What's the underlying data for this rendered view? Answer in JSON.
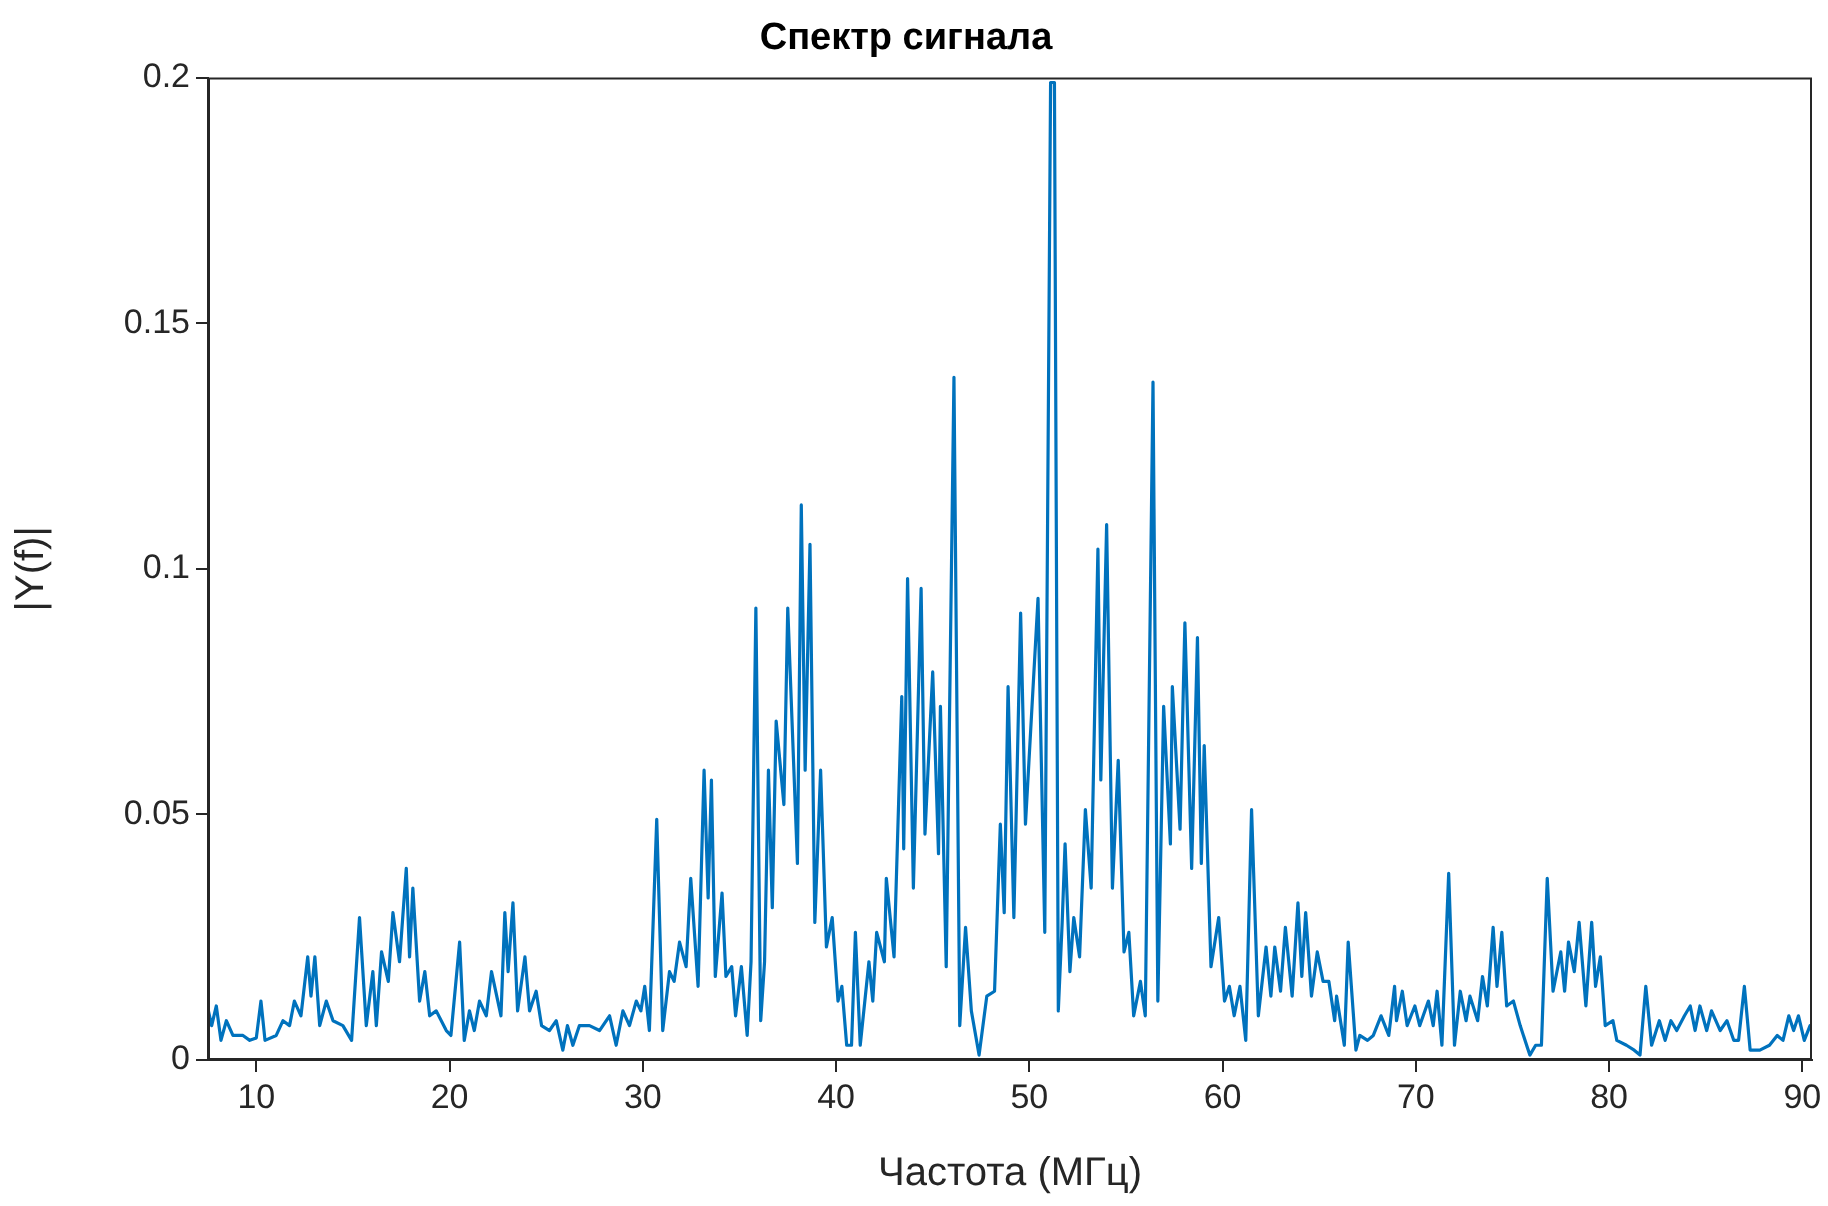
{
  "chart_data": {
    "type": "line",
    "title": "Спектр сигнала",
    "xlabel": "Частота (МГц)",
    "ylabel": "|Y(f)|",
    "xlim": [
      7.5,
      90.5
    ],
    "xticks": [
      10,
      20,
      30,
      40,
      50,
      60,
      70,
      80,
      90
    ],
    "ylim": [
      0,
      0.2
    ],
    "yticks": [
      0,
      0.05,
      0.1,
      0.15,
      0.2
    ],
    "grid": false,
    "marker": "none",
    "line_style": "solid",
    "x": [
      7.52,
      7.69,
      7.93,
      8.17,
      8.45,
      8.79,
      9.31,
      9.66,
      10.0,
      10.24,
      10.45,
      11.03,
      11.38,
      11.72,
      11.97,
      12.31,
      12.66,
      12.83,
      13.03,
      13.28,
      13.62,
      13.97,
      14.48,
      14.93,
      15.34,
      15.69,
      16.03,
      16.21,
      16.48,
      16.83,
      17.07,
      17.41,
      17.76,
      17.93,
      18.1,
      18.45,
      18.72,
      18.97,
      19.31,
      19.83,
      20.07,
      20.52,
      20.76,
      21.03,
      21.28,
      21.55,
      21.9,
      22.17,
      22.66,
      22.86,
      23.03,
      23.28,
      23.52,
      23.9,
      24.14,
      24.48,
      24.76,
      25.17,
      25.52,
      25.86,
      26.1,
      26.38,
      26.72,
      27.24,
      27.76,
      28.28,
      28.62,
      28.97,
      29.31,
      29.66,
      29.9,
      30.1,
      30.34,
      30.72,
      31.03,
      31.38,
      31.62,
      31.9,
      32.24,
      32.48,
      32.86,
      33.17,
      33.38,
      33.55,
      33.75,
      34.1,
      34.3,
      34.6,
      34.8,
      35.1,
      35.4,
      35.6,
      35.85,
      36.1,
      36.3,
      36.5,
      36.7,
      36.9,
      37.3,
      37.5,
      38.0,
      38.2,
      38.4,
      38.65,
      38.9,
      39.2,
      39.5,
      39.8,
      40.1,
      40.3,
      40.55,
      40.8,
      41.0,
      41.25,
      41.7,
      41.9,
      42.1,
      42.5,
      42.6,
      43.0,
      43.4,
      43.5,
      43.7,
      44.0,
      44.4,
      44.6,
      45.0,
      45.3,
      45.4,
      45.7,
      46.1,
      46.4,
      46.7,
      47.0,
      47.4,
      47.8,
      48.2,
      48.5,
      48.7,
      48.9,
      49.2,
      49.55,
      49.8,
      50.45,
      50.8,
      51.1,
      51.3,
      51.5,
      51.7,
      51.85,
      52.1,
      52.3,
      52.6,
      52.9,
      53.2,
      53.55,
      53.7,
      54.0,
      54.3,
      54.6,
      54.9,
      55.15,
      55.4,
      55.75,
      56.0,
      56.4,
      56.65,
      56.95,
      57.3,
      57.4,
      57.8,
      58.05,
      58.4,
      58.7,
      58.9,
      59.05,
      59.4,
      59.8,
      60.1,
      60.35,
      60.6,
      60.9,
      61.2,
      61.5,
      61.85,
      62.25,
      62.5,
      62.7,
      63.0,
      63.25,
      63.6,
      63.9,
      64.1,
      64.3,
      64.6,
      64.9,
      65.2,
      65.5,
      65.8,
      65.9,
      66.3,
      66.5,
      66.9,
      67.1,
      67.5,
      67.8,
      68.2,
      68.6,
      68.9,
      69.0,
      69.3,
      69.55,
      69.95,
      70.2,
      70.65,
      70.9,
      71.1,
      71.35,
      71.7,
      72.0,
      72.3,
      72.6,
      72.8,
      73.2,
      73.45,
      73.7,
      74.0,
      74.2,
      74.45,
      74.7,
      75.05,
      75.4,
      75.9,
      76.2,
      76.5,
      76.8,
      77.1,
      77.5,
      77.7,
      77.9,
      78.2,
      78.45,
      78.8,
      79.1,
      79.3,
      79.55,
      79.8,
      80.2,
      80.4,
      80.9,
      81.3,
      81.6,
      81.9,
      82.2,
      82.6,
      82.9,
      83.2,
      83.5,
      83.9,
      84.2,
      84.45,
      84.7,
      85.05,
      85.3,
      85.75,
      86.1,
      86.45,
      86.7,
      87.0,
      87.3,
      87.8,
      88.3,
      88.7,
      89.0,
      89.3,
      89.55,
      89.8,
      90.1,
      90.4
    ],
    "series": [
      {
        "color": "#0072bd",
        "values": [
          0.01,
          0.007,
          0.011,
          0.004,
          0.008,
          0.005,
          0.005,
          0.004,
          0.0045,
          0.012,
          0.004,
          0.005,
          0.008,
          0.007,
          0.012,
          0.009,
          0.021,
          0.013,
          0.021,
          0.007,
          0.012,
          0.008,
          0.007,
          0.004,
          0.029,
          0.007,
          0.018,
          0.007,
          0.022,
          0.016,
          0.03,
          0.02,
          0.039,
          0.021,
          0.035,
          0.012,
          0.018,
          0.009,
          0.01,
          0.006,
          0.005,
          0.024,
          0.004,
          0.01,
          0.006,
          0.012,
          0.009,
          0.018,
          0.009,
          0.03,
          0.018,
          0.032,
          0.01,
          0.021,
          0.01,
          0.014,
          0.007,
          0.006,
          0.008,
          0.002,
          0.007,
          0.003,
          0.007,
          0.007,
          0.006,
          0.009,
          0.003,
          0.01,
          0.007,
          0.012,
          0.01,
          0.015,
          0.006,
          0.049,
          0.006,
          0.018,
          0.016,
          0.024,
          0.019,
          0.037,
          0.015,
          0.059,
          0.033,
          0.057,
          0.017,
          0.034,
          0.017,
          0.019,
          0.009,
          0.019,
          0.005,
          0.02,
          0.092,
          0.008,
          0.02,
          0.059,
          0.031,
          0.069,
          0.052,
          0.092,
          0.04,
          0.113,
          0.059,
          0.105,
          0.028,
          0.059,
          0.023,
          0.029,
          0.012,
          0.015,
          0.003,
          0.003,
          0.026,
          0.003,
          0.02,
          0.012,
          0.026,
          0.02,
          0.037,
          0.021,
          0.074,
          0.043,
          0.098,
          0.035,
          0.096,
          0.046,
          0.079,
          0.042,
          0.072,
          0.019,
          0.139,
          0.007,
          0.027,
          0.01,
          0.001,
          0.013,
          0.014,
          0.048,
          0.03,
          0.076,
          0.029,
          0.091,
          0.048,
          0.094,
          0.026,
          0.199,
          0.199,
          0.01,
          0.028,
          0.044,
          0.018,
          0.029,
          0.021,
          0.051,
          0.035,
          0.104,
          0.057,
          0.109,
          0.035,
          0.061,
          0.022,
          0.026,
          0.009,
          0.016,
          0.009,
          0.138,
          0.012,
          0.072,
          0.044,
          0.076,
          0.047,
          0.089,
          0.039,
          0.086,
          0.04,
          0.064,
          0.019,
          0.029,
          0.012,
          0.015,
          0.009,
          0.015,
          0.004,
          0.051,
          0.009,
          0.023,
          0.013,
          0.023,
          0.014,
          0.027,
          0.013,
          0.032,
          0.017,
          0.03,
          0.013,
          0.022,
          0.016,
          0.016,
          0.008,
          0.013,
          0.003,
          0.024,
          0.002,
          0.005,
          0.004,
          0.005,
          0.009,
          0.005,
          0.015,
          0.008,
          0.014,
          0.007,
          0.011,
          0.007,
          0.012,
          0.007,
          0.014,
          0.003,
          0.038,
          0.003,
          0.014,
          0.008,
          0.013,
          0.008,
          0.017,
          0.011,
          0.027,
          0.015,
          0.026,
          0.011,
          0.012,
          0.007,
          0.001,
          0.003,
          0.003,
          0.037,
          0.014,
          0.022,
          0.014,
          0.024,
          0.018,
          0.028,
          0.011,
          0.028,
          0.015,
          0.021,
          0.007,
          0.008,
          0.004,
          0.003,
          0.002,
          0.001,
          0.015,
          0.003,
          0.008,
          0.004,
          0.008,
          0.006,
          0.009,
          0.011,
          0.006,
          0.011,
          0.006,
          0.01,
          0.006,
          0.008,
          0.004,
          0.004,
          0.015,
          0.002,
          0.002,
          0.003,
          0.005,
          0.004,
          0.009,
          0.006,
          0.009,
          0.004,
          0.007
        ]
      }
    ]
  }
}
